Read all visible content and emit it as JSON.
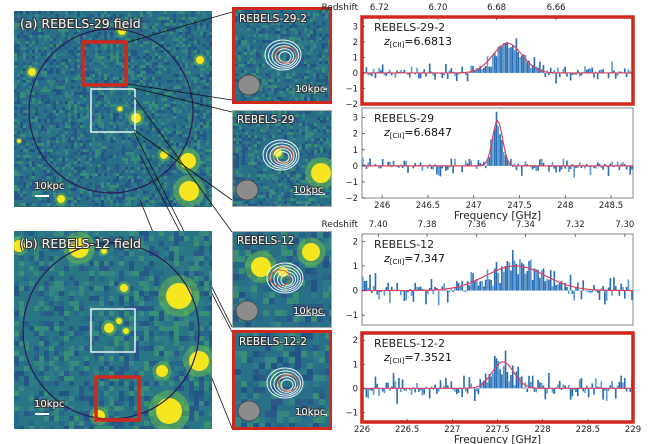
{
  "colors": {
    "highlight_red": "#d0281c",
    "bar_dark": "#2a6db0",
    "bar_light": "#5b9bd5",
    "fit_line": "#e0405a",
    "field_bg": "#2e7d8a",
    "source_yellow": "#f5e61f",
    "circle": "#2a1a55",
    "beam_grey": "#8c8c8c"
  },
  "panel_a": {
    "field_label": "(a) REBELS-29 field",
    "scale_label": "10kpc",
    "zoom_top_label": "REBELS-29-2",
    "zoom_bottom_label": "REBELS-29",
    "zoom_scale_label": "10kpc"
  },
  "panel_b": {
    "field_label": "(b) REBELS-12 field",
    "scale_label": "10kpc",
    "zoom_top_label": "REBELS-12",
    "zoom_bottom_label": "REBELS-12-2",
    "zoom_scale_label": "10kpc"
  },
  "chart_data": [
    {
      "type": "bar",
      "title": "REBELS-29-2",
      "annotation": "z[CII]=6.6813",
      "z_label": "z",
      "z_sub": "[CII]",
      "z_value": "=6.6813",
      "highlighted": true,
      "xlabel": "Frequency [GHz]",
      "top_axis_label": "Redshift",
      "top_ticks": [
        "6.72",
        "6.70",
        "6.68",
        "6.66"
      ],
      "top_tick_freqs": [
        245.97,
        246.61,
        247.25,
        247.9
      ],
      "xlim": [
        245.78,
        248.74
      ],
      "ylim": [
        -2,
        3.6
      ],
      "yticks": [
        -2,
        -1,
        0,
        1,
        2,
        3
      ],
      "fit": {
        "center": 247.37,
        "amplitude": 1.9,
        "sigma": 0.16
      },
      "seed": 11
    },
    {
      "type": "bar",
      "title": "REBELS-29",
      "annotation": "z[CII]=6.6847",
      "z_label": "z",
      "z_sub": "[CII]",
      "z_value": "=6.6847",
      "highlighted": false,
      "xlabel": "Frequency [GHz]",
      "xticks": [
        246,
        246.5,
        247,
        247.5,
        248,
        248.5
      ],
      "xtick_labels": [
        "246",
        "246.5",
        "247",
        "247.5",
        "248",
        "248.5"
      ],
      "xlim": [
        245.78,
        248.74
      ],
      "ylim": [
        -2,
        3.6
      ],
      "yticks": [
        -2,
        -1,
        0,
        1,
        2,
        3
      ],
      "fit": {
        "center": 247.26,
        "amplitude": 2.8,
        "sigma": 0.055
      },
      "seed": 23
    },
    {
      "type": "bar",
      "title": "REBELS-12",
      "annotation": "z[CII]=7.347",
      "z_label": "z",
      "z_sub": "[CII]",
      "z_value": "=7.347",
      "highlighted": false,
      "xlabel": "Frequency [GHz]",
      "top_axis_label": "Redshift",
      "top_ticks": [
        "7.40",
        "7.38",
        "7.36",
        "7.34",
        "7.32",
        "7.30"
      ],
      "top_tick_freqs": [
        226.18,
        226.72,
        227.27,
        227.81,
        228.36,
        228.91
      ],
      "xlim": [
        226,
        229
      ],
      "ylim": [
        -1.4,
        2.3
      ],
      "yticks": [
        -1,
        0,
        1,
        2
      ],
      "fit": {
        "center": 227.7,
        "amplitude": 1.0,
        "sigma": 0.33
      },
      "seed": 37
    },
    {
      "type": "bar",
      "title": "REBELS-12-2",
      "annotation": "z[CII]=7.3521",
      "z_label": "z",
      "z_sub": "[CII]",
      "z_value": "=7.3521",
      "highlighted": true,
      "xlabel": "Frequency [GHz]",
      "xticks": [
        226,
        226.5,
        227,
        227.5,
        228,
        228.5,
        229
      ],
      "xtick_labels": [
        "226",
        "226.5",
        "227",
        "227.5",
        "228",
        "228.5",
        "229"
      ],
      "xlim": [
        226,
        229
      ],
      "ylim": [
        -1.4,
        2.3
      ],
      "yticks": [
        -1,
        0,
        1,
        2
      ],
      "fit": {
        "center": 227.56,
        "amplitude": 1.1,
        "sigma": 0.12
      },
      "seed": 53
    }
  ]
}
